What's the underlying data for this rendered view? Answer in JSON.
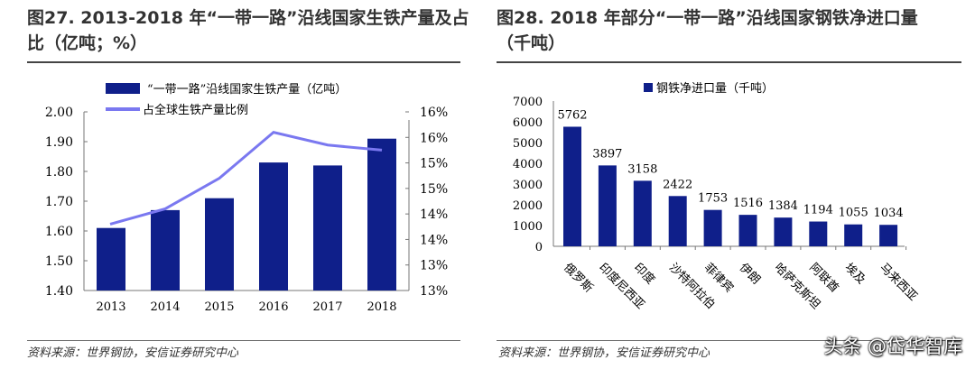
{
  "left": {
    "title_line1": "图27. 2013-2018 年“一带一路”沿线国家生铁产量及占",
    "title_line2": "比（亿吨；%）",
    "source": "资料来源：世界钢协，安信证券研究中心"
  },
  "right": {
    "title_line1": "图28. 2018 年部分“一带一路”沿线国家钢铁净进口量",
    "title_line2": "（千吨）",
    "source": "资料来源：世界钢协，安信证券研究中心"
  },
  "watermark": "头条 @岱华智库",
  "chart_data": [
    {
      "type": "bar+line",
      "categories": [
        "2013",
        "2014",
        "2015",
        "2016",
        "2017",
        "2018"
      ],
      "series": [
        {
          "name": "“一带一路”沿线国家生铁产量（亿吨）",
          "type": "bar",
          "axis": "left",
          "values": [
            1.61,
            1.67,
            1.71,
            1.83,
            1.82,
            1.91
          ],
          "color": "#0f1f8a"
        },
        {
          "name": "占全球生铁产量比例",
          "type": "line",
          "axis": "right",
          "values": [
            13.8,
            14.1,
            14.7,
            15.6,
            15.35,
            15.25
          ],
          "color": "#7a78f0"
        }
      ],
      "ylim": [
        1.4,
        2.0
      ],
      "yticks": [
        "1.40",
        "1.50",
        "1.60",
        "1.70",
        "1.80",
        "1.90",
        "2.00"
      ],
      "y2lim": [
        12.5,
        16.0
      ],
      "y2ticks": [
        "13%",
        "13%",
        "14%",
        "14%",
        "15%",
        "15%",
        "16%",
        "16%"
      ],
      "legend": "top",
      "grid": false
    },
    {
      "type": "bar",
      "categories": [
        "俄罗斯",
        "印度尼西亚",
        "印度",
        "沙特阿拉伯",
        "菲律宾",
        "伊朗",
        "哈萨克斯坦",
        "阿联酋",
        "埃及",
        "马来西亚"
      ],
      "series": [
        {
          "name": "钢铁净进口量（千吨）",
          "values": [
            5762,
            3897,
            3158,
            2422,
            1753,
            1516,
            1384,
            1194,
            1055,
            1034
          ],
          "color": "#0f1f8a"
        }
      ],
      "ylim": [
        0,
        7000
      ],
      "yticks": [
        "0",
        "1000",
        "2000",
        "3000",
        "4000",
        "5000",
        "6000",
        "7000"
      ],
      "legend": "top",
      "grid": false
    }
  ]
}
